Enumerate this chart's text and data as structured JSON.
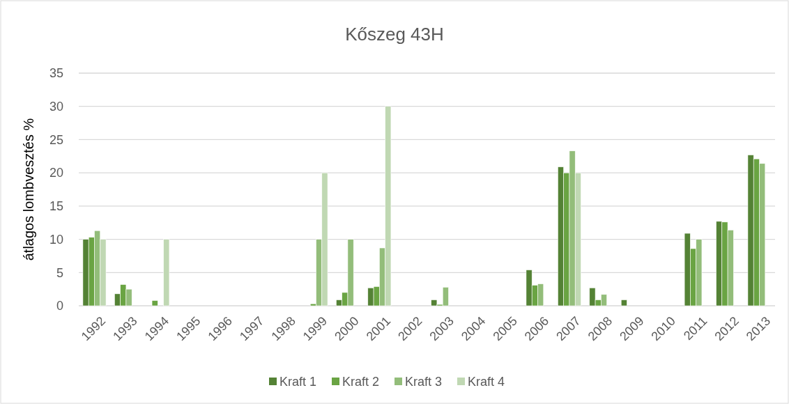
{
  "chart_data": {
    "type": "bar",
    "title": "Kőszeg 43H",
    "ylabel": "átlagos lombvesztés %",
    "categories": [
      "1992",
      "1993",
      "1994",
      "1995",
      "1996",
      "1997",
      "1998",
      "1999",
      "2000",
      "2001",
      "2002",
      "2003",
      "2004",
      "2005",
      "2006",
      "2007",
      "2008",
      "2009",
      "2010",
      "2011",
      "2012",
      "2013"
    ],
    "series": [
      {
        "name": "Kraft 1",
        "color": "#548235",
        "values": [
          10,
          1.8,
          null,
          null,
          null,
          null,
          null,
          null,
          0.9,
          2.7,
          null,
          0.9,
          null,
          null,
          5.4,
          20.9,
          2.7,
          0.9,
          null,
          10.9,
          12.7,
          22.7
        ]
      },
      {
        "name": "Kraft 2",
        "color": "#6aa443",
        "values": [
          10.3,
          3.2,
          0.8,
          null,
          null,
          null,
          null,
          0.3,
          2,
          2.9,
          null,
          0.2,
          null,
          null,
          3.1,
          20,
          0.9,
          null,
          null,
          8.6,
          12.6,
          22.1
        ]
      },
      {
        "name": "Kraft 3",
        "color": "#93bd7a",
        "values": [
          11.3,
          2.5,
          null,
          null,
          null,
          null,
          null,
          10,
          10,
          8.7,
          null,
          2.8,
          null,
          null,
          3.3,
          23.3,
          1.7,
          null,
          null,
          10,
          11.4,
          21.4
        ]
      },
      {
        "name": "Kraft 4",
        "color": "#c0d8b3",
        "values": [
          10,
          null,
          10,
          null,
          null,
          null,
          null,
          20,
          null,
          30,
          null,
          null,
          null,
          null,
          null,
          20,
          null,
          null,
          null,
          null,
          null,
          null
        ]
      }
    ],
    "ylim": [
      0,
      35
    ],
    "yticks": [
      0,
      5,
      10,
      15,
      20,
      25,
      30,
      35
    ],
    "grid": "y",
    "legend": "bottom"
  }
}
